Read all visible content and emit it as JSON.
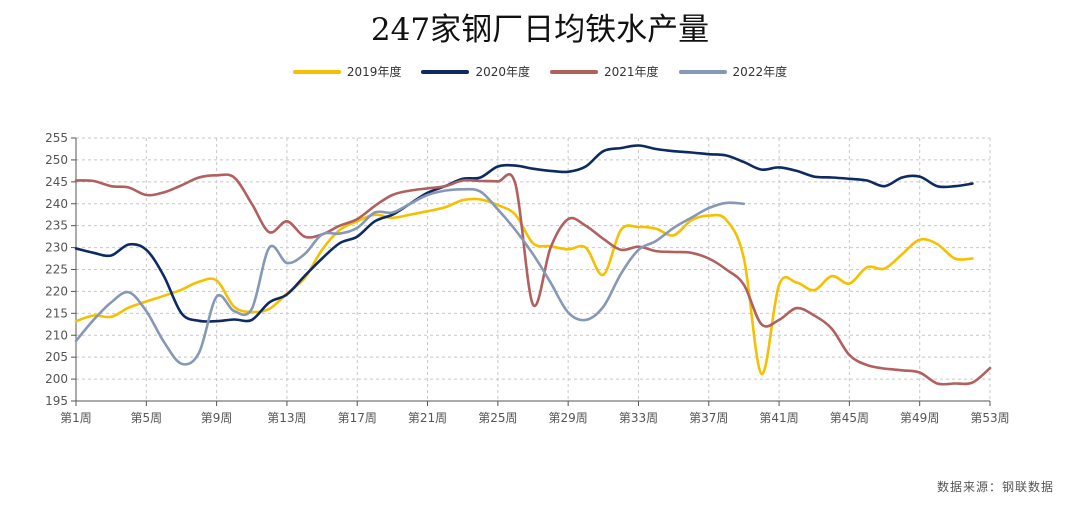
{
  "chart_data": {
    "type": "line",
    "title": "247家钢厂日均铁水产量",
    "xlabel": "",
    "ylabel": "",
    "ylim": [
      195,
      255
    ],
    "yticks": [
      195,
      200,
      205,
      210,
      215,
      220,
      225,
      230,
      235,
      240,
      245,
      250,
      255
    ],
    "xlim": [
      1,
      53
    ],
    "xticks": [
      {
        "x": 1,
        "label": "第1周"
      },
      {
        "x": 5,
        "label": "第5周"
      },
      {
        "x": 9,
        "label": "第9周"
      },
      {
        "x": 13,
        "label": "第13周"
      },
      {
        "x": 17,
        "label": "第17周"
      },
      {
        "x": 21,
        "label": "第21周"
      },
      {
        "x": 25,
        "label": "第25周"
      },
      {
        "x": 29,
        "label": "第29周"
      },
      {
        "x": 33,
        "label": "第33周"
      },
      {
        "x": 37,
        "label": "第37周"
      },
      {
        "x": 41,
        "label": "第41周"
      },
      {
        "x": 45,
        "label": "第45周"
      },
      {
        "x": 49,
        "label": "第49周"
      },
      {
        "x": 53,
        "label": "第53周"
      }
    ],
    "grid": true,
    "legend_position": "top",
    "series": [
      {
        "name": "2019年度",
        "color": "#f5c000",
        "points": [
          [
            1,
            213.2
          ],
          [
            2,
            214.5
          ],
          [
            3,
            214.2
          ],
          [
            4,
            216.3
          ],
          [
            5,
            217.7
          ],
          [
            6,
            219.0
          ],
          [
            7,
            220.4
          ],
          [
            8,
            222.2
          ],
          [
            9,
            222.5
          ],
          [
            10,
            216.5
          ],
          [
            11,
            215.3
          ],
          [
            12,
            216.0
          ],
          [
            13,
            219.5
          ],
          [
            14,
            223.0
          ],
          [
            15,
            229.5
          ],
          [
            16,
            234.0
          ],
          [
            17,
            236.0
          ],
          [
            18,
            237.5
          ],
          [
            19,
            236.8
          ],
          [
            20,
            237.5
          ],
          [
            21,
            238.3
          ],
          [
            22,
            239.2
          ],
          [
            23,
            240.8
          ],
          [
            24,
            241.0
          ],
          [
            25,
            239.7
          ],
          [
            26,
            237.5
          ],
          [
            27,
            231.0
          ],
          [
            28,
            230.3
          ],
          [
            29,
            229.6
          ],
          [
            30,
            230.0
          ],
          [
            31,
            223.8
          ],
          [
            32,
            234.0
          ],
          [
            33,
            234.7
          ],
          [
            34,
            234.3
          ],
          [
            35,
            232.8
          ],
          [
            36,
            236.2
          ],
          [
            37,
            237.3
          ],
          [
            38,
            236.3
          ],
          [
            39,
            227.5
          ],
          [
            40,
            201.2
          ],
          [
            41,
            221.5
          ],
          [
            42,
            222.0
          ],
          [
            43,
            220.3
          ],
          [
            44,
            223.5
          ],
          [
            45,
            221.8
          ],
          [
            46,
            225.5
          ],
          [
            47,
            225.2
          ],
          [
            48,
            228.5
          ],
          [
            49,
            231.8
          ],
          [
            50,
            230.8
          ],
          [
            51,
            227.5
          ],
          [
            52,
            227.5
          ]
        ]
      },
      {
        "name": "2020年度",
        "color": "#0d2a63",
        "points": [
          [
            1,
            229.8
          ],
          [
            2,
            228.8
          ],
          [
            3,
            228.2
          ],
          [
            4,
            230.7
          ],
          [
            5,
            229.5
          ],
          [
            6,
            223.5
          ],
          [
            7,
            215.0
          ],
          [
            8,
            213.3
          ],
          [
            9,
            213.2
          ],
          [
            10,
            213.6
          ],
          [
            11,
            213.5
          ],
          [
            12,
            217.5
          ],
          [
            13,
            219.3
          ],
          [
            14,
            223.5
          ],
          [
            15,
            227.5
          ],
          [
            16,
            231.0
          ],
          [
            17,
            232.5
          ],
          [
            18,
            236.0
          ],
          [
            19,
            237.5
          ],
          [
            20,
            240.0
          ],
          [
            21,
            242.5
          ],
          [
            22,
            244.0
          ],
          [
            23,
            245.7
          ],
          [
            24,
            246.0
          ],
          [
            25,
            248.5
          ],
          [
            26,
            248.7
          ],
          [
            27,
            248.0
          ],
          [
            28,
            247.5
          ],
          [
            29,
            247.3
          ],
          [
            30,
            248.5
          ],
          [
            31,
            252.0
          ],
          [
            32,
            252.7
          ],
          [
            33,
            253.3
          ],
          [
            34,
            252.5
          ],
          [
            35,
            252.0
          ],
          [
            36,
            251.7
          ],
          [
            37,
            251.3
          ],
          [
            38,
            251.0
          ],
          [
            39,
            249.5
          ],
          [
            40,
            247.8
          ],
          [
            41,
            248.3
          ],
          [
            42,
            247.5
          ],
          [
            43,
            246.2
          ],
          [
            44,
            246.0
          ],
          [
            45,
            245.7
          ],
          [
            46,
            245.3
          ],
          [
            47,
            244.0
          ],
          [
            48,
            246.0
          ],
          [
            49,
            246.2
          ],
          [
            50,
            244.0
          ],
          [
            51,
            244.0
          ],
          [
            52,
            244.6
          ]
        ]
      },
      {
        "name": "2021年度",
        "color": "#b25f5f",
        "points": [
          [
            1,
            245.3
          ],
          [
            2,
            245.2
          ],
          [
            3,
            244.0
          ],
          [
            4,
            243.7
          ],
          [
            5,
            242.0
          ],
          [
            6,
            242.6
          ],
          [
            7,
            244.2
          ],
          [
            8,
            246.0
          ],
          [
            9,
            246.5
          ],
          [
            10,
            246.0
          ],
          [
            11,
            240.0
          ],
          [
            12,
            233.5
          ],
          [
            13,
            236.0
          ],
          [
            14,
            232.5
          ],
          [
            15,
            233.0
          ],
          [
            16,
            235.0
          ],
          [
            17,
            236.5
          ],
          [
            18,
            239.5
          ],
          [
            19,
            242.0
          ],
          [
            20,
            243.0
          ],
          [
            21,
            243.5
          ],
          [
            22,
            244.0
          ],
          [
            23,
            245.3
          ],
          [
            24,
            245.2
          ],
          [
            25,
            245.1
          ],
          [
            26,
            244.5
          ],
          [
            27,
            217.0
          ],
          [
            28,
            230.0
          ],
          [
            29,
            236.5
          ],
          [
            30,
            235.0
          ],
          [
            31,
            232.0
          ],
          [
            32,
            229.5
          ],
          [
            33,
            230.2
          ],
          [
            34,
            229.2
          ],
          [
            35,
            229.0
          ],
          [
            36,
            228.8
          ],
          [
            37,
            227.5
          ],
          [
            38,
            225.0
          ],
          [
            39,
            221.5
          ],
          [
            40,
            212.5
          ],
          [
            41,
            213.5
          ],
          [
            42,
            216.2
          ],
          [
            43,
            214.5
          ],
          [
            44,
            211.5
          ],
          [
            45,
            205.5
          ],
          [
            46,
            203.2
          ],
          [
            47,
            202.4
          ],
          [
            48,
            202.0
          ],
          [
            49,
            201.5
          ],
          [
            50,
            199.0
          ],
          [
            51,
            199.0
          ],
          [
            52,
            199.2
          ],
          [
            53,
            202.5
          ]
        ]
      },
      {
        "name": "2022年度",
        "color": "#8598b5",
        "points": [
          [
            1,
            208.7
          ],
          [
            2,
            213.5
          ],
          [
            3,
            217.5
          ],
          [
            4,
            219.8
          ],
          [
            5,
            215.5
          ],
          [
            6,
            208.5
          ],
          [
            7,
            203.5
          ],
          [
            8,
            206.0
          ],
          [
            9,
            218.8
          ],
          [
            10,
            215.5
          ],
          [
            11,
            216.0
          ],
          [
            12,
            230.0
          ],
          [
            13,
            226.5
          ],
          [
            14,
            228.5
          ],
          [
            15,
            233.0
          ],
          [
            16,
            233.2
          ],
          [
            17,
            234.5
          ],
          [
            18,
            238.0
          ],
          [
            19,
            238.0
          ],
          [
            20,
            240.0
          ],
          [
            21,
            242.0
          ],
          [
            22,
            243.0
          ],
          [
            23,
            243.3
          ],
          [
            24,
            242.8
          ],
          [
            25,
            238.7
          ],
          [
            26,
            234.0
          ],
          [
            27,
            228.5
          ],
          [
            28,
            222.0
          ],
          [
            29,
            215.2
          ],
          [
            30,
            213.5
          ],
          [
            31,
            216.5
          ],
          [
            32,
            224.0
          ],
          [
            33,
            229.5
          ],
          [
            34,
            231.5
          ],
          [
            35,
            234.5
          ],
          [
            36,
            236.8
          ],
          [
            37,
            239.0
          ],
          [
            38,
            240.2
          ],
          [
            39,
            240.0
          ]
        ]
      }
    ]
  },
  "source_note": "数据来源：钢联数据"
}
